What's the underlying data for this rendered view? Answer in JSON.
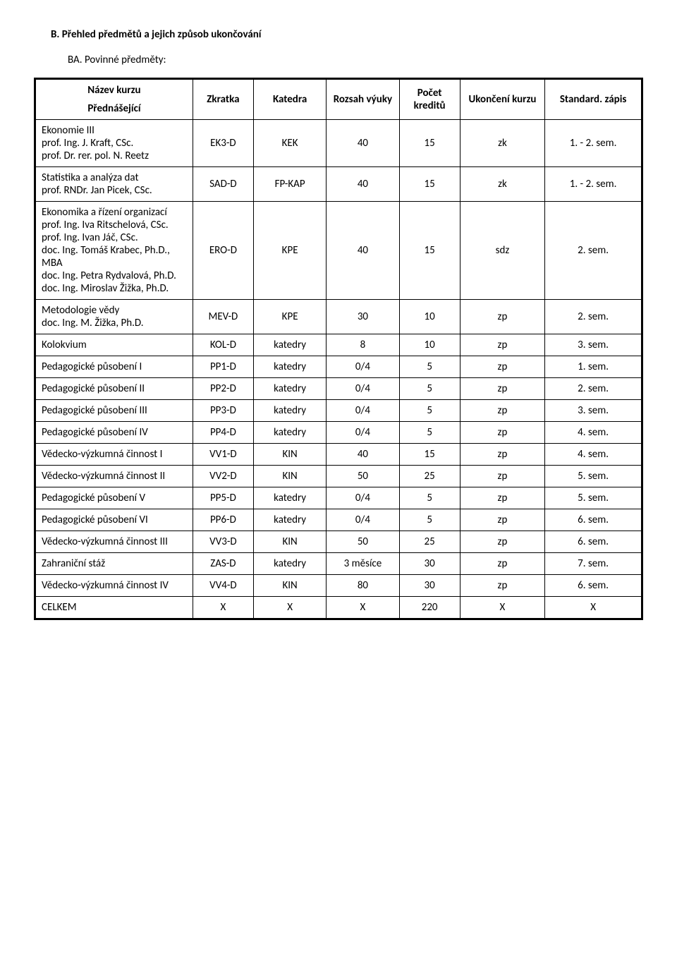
{
  "headings": {
    "section": "B.   Přehled předmětů a jejich způsob ukončování",
    "subsection": "BA. Povinné předměty:"
  },
  "header": {
    "name": "Název kurzu",
    "lecturer": "Přednášející",
    "short": "Zkratka",
    "dept": "Katedra",
    "scope": "Rozsah výuky",
    "credits": "Počet kreditů",
    "completion": "Ukončení kurzu",
    "standard": "Standard. zápis"
  },
  "rows": [
    {
      "name": "Ekonomie III\nprof. Ing. J. Kraft, CSc.\nprof. Dr. rer. pol. N. Reetz",
      "short": "EK3-D",
      "dept": "KEK",
      "scope": "40",
      "credits": "15",
      "end": "zk",
      "std": "1. - 2. sem."
    },
    {
      "name": "Statistika a analýza dat\nprof. RNDr. Jan Picek, CSc.",
      "short": "SAD-D",
      "dept": "FP-KAP",
      "scope": "40",
      "credits": "15",
      "end": "zk",
      "std": "1. - 2. sem."
    },
    {
      "name": "Ekonomika a řízení organizací\nprof. Ing. Iva Ritschelová, CSc.\nprof. Ing. Ivan Jáč, CSc.\ndoc. Ing. Tomáš Krabec, Ph.D., MBA\ndoc. Ing. Petra Rydvalová, Ph.D.\ndoc. Ing. Miroslav Žižka, Ph.D.",
      "short": "ERO-D",
      "dept": "KPE",
      "scope": "40",
      "credits": "15",
      "end": "sdz",
      "std": "2. sem."
    },
    {
      "name": "Metodologie vědy\ndoc. Ing. M. Žižka, Ph.D.",
      "short": "MEV-D",
      "dept": "KPE",
      "scope": "30",
      "credits": "10",
      "end": "zp",
      "std": "2. sem."
    },
    {
      "name": "Kolokvium",
      "short": "KOL-D",
      "dept": "katedry",
      "scope": "8",
      "credits": "10",
      "end": "zp",
      "std": "3. sem."
    },
    {
      "name": "Pedagogické působení I",
      "short": "PP1-D",
      "dept": "katedry",
      "scope": "0/4",
      "credits": "5",
      "end": "zp",
      "std": "1. sem."
    },
    {
      "name": "Pedagogické působení II",
      "short": "PP2-D",
      "dept": "katedry",
      "scope": "0/4",
      "credits": "5",
      "end": "zp",
      "std": "2. sem."
    },
    {
      "name": "Pedagogické působení III",
      "short": "PP3-D",
      "dept": "katedry",
      "scope": "0/4",
      "credits": "5",
      "end": "zp",
      "std": "3. sem."
    },
    {
      "name": "Pedagogické působení IV",
      "short": "PP4-D",
      "dept": "katedry",
      "scope": "0/4",
      "credits": "5",
      "end": "zp",
      "std": "4. sem."
    },
    {
      "name": "Vědecko-výzkumná činnost I",
      "short": "VV1-D",
      "dept": "KIN",
      "scope": "40",
      "credits": "15",
      "end": "zp",
      "std": "4. sem."
    },
    {
      "name": "Vědecko-výzkumná činnost II",
      "short": "VV2-D",
      "dept": "KIN",
      "scope": "50",
      "credits": "25",
      "end": "zp",
      "std": "5. sem."
    },
    {
      "name": "Pedagogické působení V",
      "short": "PP5-D",
      "dept": "katedry",
      "scope": "0/4",
      "credits": "5",
      "end": "zp",
      "std": "5. sem."
    },
    {
      "name": "Pedagogické působení VI",
      "short": "PP6-D",
      "dept": "katedry",
      "scope": "0/4",
      "credits": "5",
      "end": "zp",
      "std": "6. sem."
    },
    {
      "name": "Vědecko-výzkumná činnost III",
      "short": "VV3-D",
      "dept": "KIN",
      "scope": "50",
      "credits": "25",
      "end": "zp",
      "std": "6. sem."
    },
    {
      "name": "Zahraniční stáž",
      "short": "ZAS-D",
      "dept": "katedry",
      "scope": "3 měsíce",
      "credits": "30",
      "end": "zp",
      "std": "7. sem."
    },
    {
      "name": "Vědecko-výzkumná činnost IV",
      "short": "VV4-D",
      "dept": "KIN",
      "scope": "80",
      "credits": "30",
      "end": "zp",
      "std": "6. sem."
    },
    {
      "name": "CELKEM",
      "short": "X",
      "dept": "X",
      "scope": "X",
      "credits": "220",
      "end": "X",
      "std": "X"
    }
  ]
}
